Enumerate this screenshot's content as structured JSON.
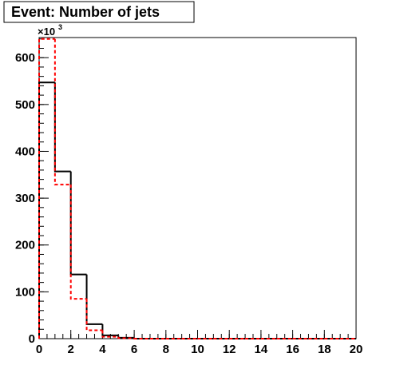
{
  "chart_data": {
    "type": "histogram",
    "title": "Event: Number of jets",
    "y_multiplier": "×10",
    "y_multiplier_exponent": "3",
    "bins": [
      0,
      1,
      2,
      3,
      4,
      5,
      6,
      7,
      8,
      9,
      10,
      11,
      12,
      13,
      14,
      15,
      16,
      17,
      18,
      19,
      20
    ],
    "series": [
      {
        "color": "#000000",
        "line_style": "solid",
        "values": [
          547,
          357,
          137,
          31,
          7,
          2,
          0,
          0,
          0,
          0,
          0,
          0,
          0,
          0,
          0,
          0,
          0,
          0,
          0,
          0
        ]
      },
      {
        "color": "#ff0000",
        "line_style": "dashed",
        "values": [
          640,
          329,
          85,
          18,
          4,
          1,
          0,
          0,
          0,
          0,
          0,
          0,
          0,
          0,
          0,
          0,
          0,
          0,
          0,
          0
        ]
      }
    ],
    "xlim": [
      0,
      20
    ],
    "xticks": [
      0,
      2,
      4,
      6,
      8,
      10,
      12,
      14,
      16,
      18,
      20
    ],
    "ylim": [
      0,
      643
    ],
    "yticks": [
      0,
      100,
      200,
      300,
      400,
      500,
      600
    ],
    "grid": false
  }
}
